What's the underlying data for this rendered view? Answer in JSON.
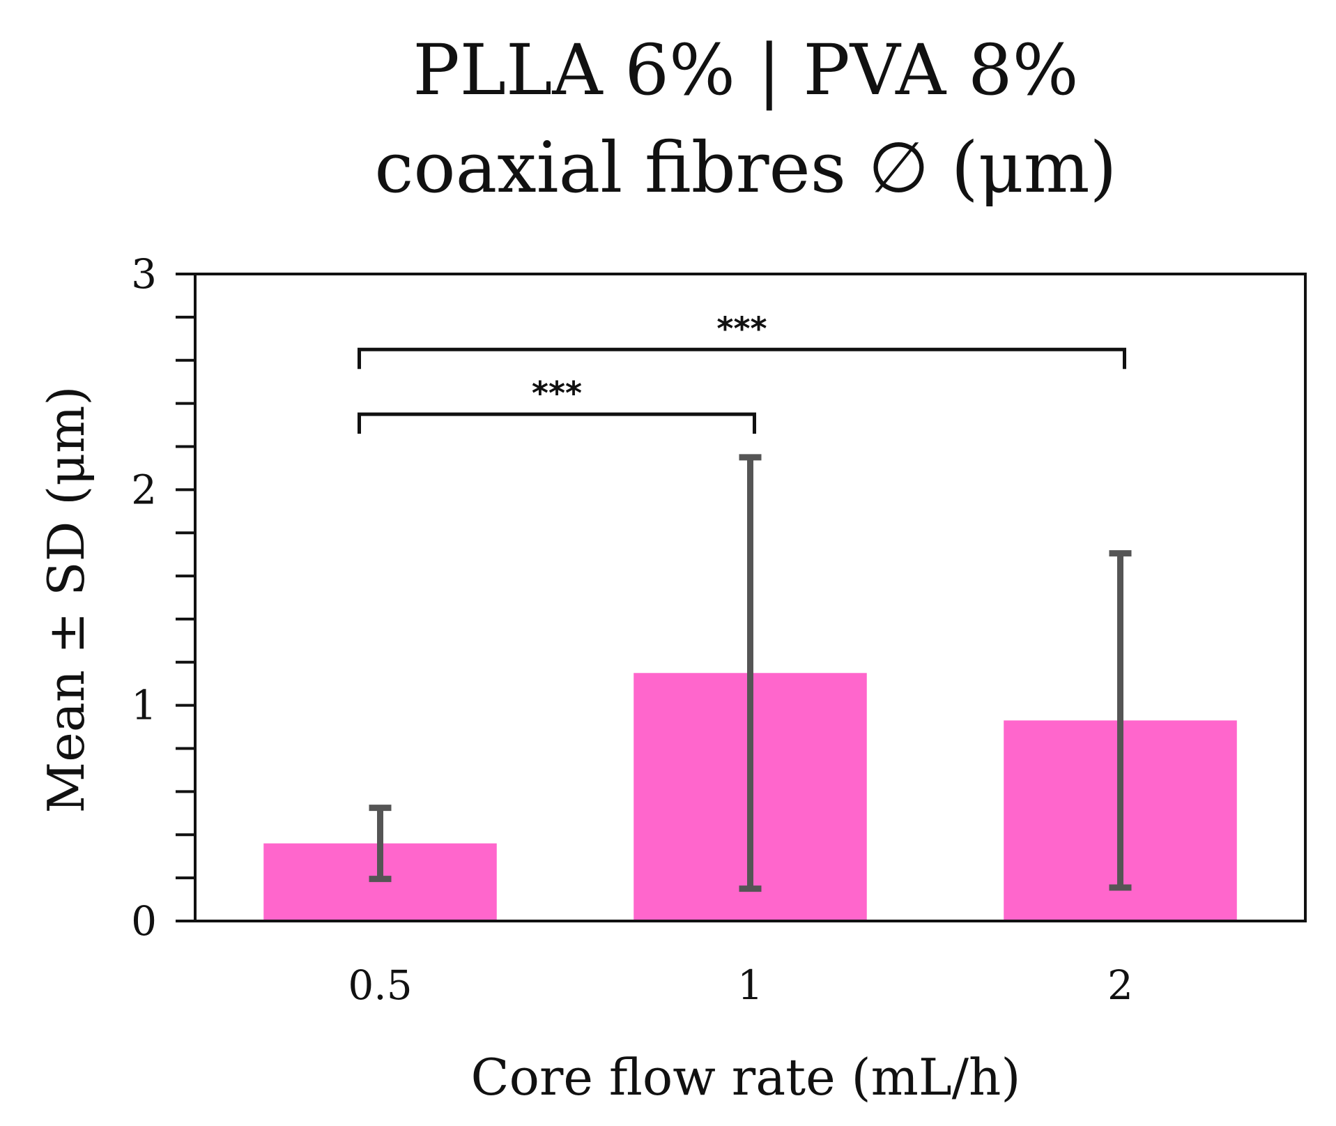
{
  "chart_data": {
    "type": "bar",
    "title_line1": "PLLA 6% | PVA 8%",
    "title_line2": "coaxial fibres ∅ (μm)",
    "xlabel": "Core flow rate (mL/h)",
    "ylabel": "Mean ± SD (μm)",
    "categories": [
      "0.5",
      "1",
      "2"
    ],
    "values": [
      0.36,
      1.15,
      0.93
    ],
    "errors": [
      0.165,
      1.0,
      0.775
    ],
    "ylim": [
      0,
      3
    ],
    "yticks": [
      "0",
      "1",
      "2",
      "3"
    ],
    "bar_color": "#ff66cc",
    "error_color": "#555555",
    "significance": [
      {
        "from": 0,
        "to": 1,
        "label": "***",
        "y": 2.35
      },
      {
        "from": 0,
        "to": 2,
        "label": "***",
        "y": 2.65
      }
    ],
    "grid": false
  }
}
